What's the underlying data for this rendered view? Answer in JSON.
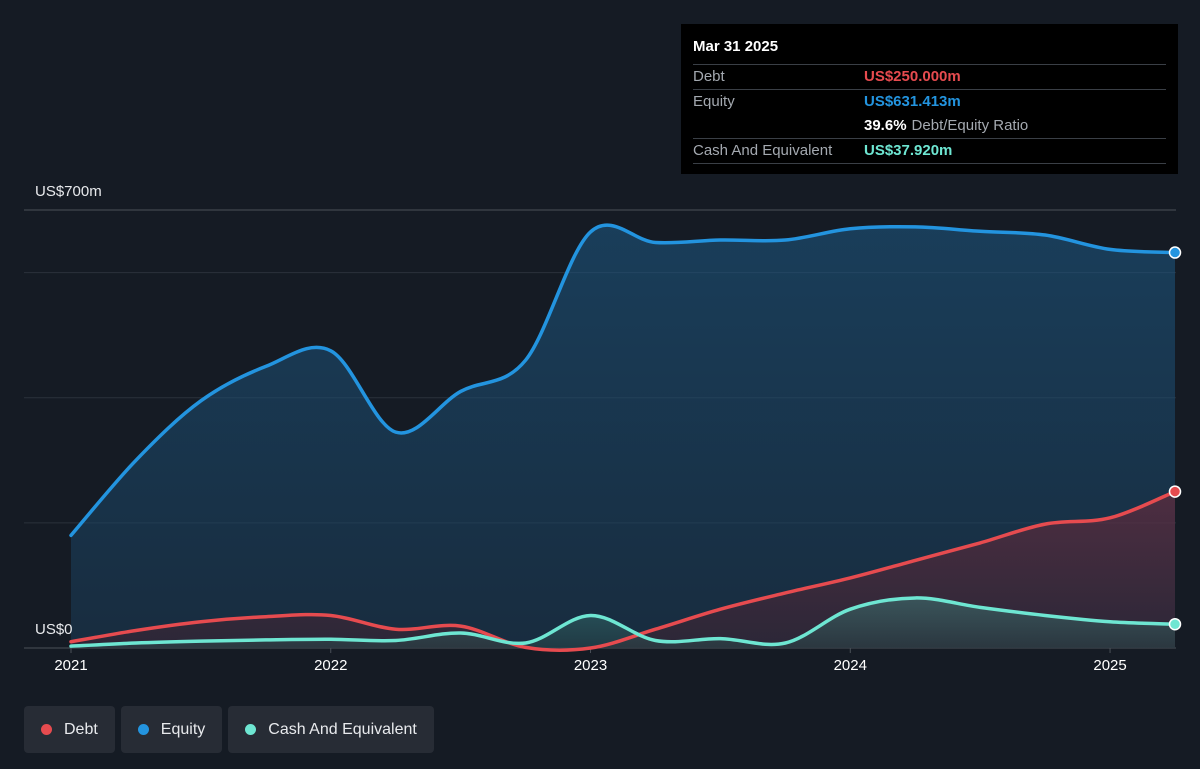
{
  "chart_data": {
    "type": "area",
    "y_axis": {
      "top_label": "US$700m",
      "bottom_label": "US$0",
      "ylim": [
        0,
        700
      ],
      "unit": "US$m"
    },
    "x_ticks": [
      {
        "label": "2021",
        "x": 2021.0
      },
      {
        "label": "2022",
        "x": 2022.0
      },
      {
        "label": "2023",
        "x": 2023.0
      },
      {
        "label": "2024",
        "x": 2024.0
      },
      {
        "label": "2025",
        "x": 2025.0
      }
    ],
    "series": [
      {
        "name": "Equity",
        "color": "#2394df",
        "points": [
          [
            2021.0,
            180
          ],
          [
            2021.25,
            300
          ],
          [
            2021.5,
            395
          ],
          [
            2021.75,
            450
          ],
          [
            2022.0,
            475
          ],
          [
            2022.25,
            345
          ],
          [
            2022.5,
            410
          ],
          [
            2022.75,
            460
          ],
          [
            2023.0,
            665
          ],
          [
            2023.25,
            648
          ],
          [
            2023.5,
            652
          ],
          [
            2023.75,
            652
          ],
          [
            2024.0,
            670
          ],
          [
            2024.25,
            673
          ],
          [
            2024.5,
            666
          ],
          [
            2024.75,
            660
          ],
          [
            2025.0,
            637
          ],
          [
            2025.25,
            632
          ]
        ]
      },
      {
        "name": "Debt",
        "color": "#e64b4f",
        "points": [
          [
            2021.0,
            10
          ],
          [
            2021.25,
            28
          ],
          [
            2021.5,
            42
          ],
          [
            2021.75,
            50
          ],
          [
            2022.0,
            52
          ],
          [
            2022.25,
            30
          ],
          [
            2022.5,
            35
          ],
          [
            2022.75,
            1
          ],
          [
            2023.0,
            0
          ],
          [
            2023.25,
            30
          ],
          [
            2023.5,
            62
          ],
          [
            2023.75,
            88
          ],
          [
            2024.0,
            112
          ],
          [
            2024.25,
            140
          ],
          [
            2024.5,
            168
          ],
          [
            2024.75,
            198
          ],
          [
            2025.0,
            208
          ],
          [
            2025.25,
            250
          ]
        ]
      },
      {
        "name": "Cash And Equivalent",
        "color": "#6ee6d2",
        "points": [
          [
            2021.0,
            3
          ],
          [
            2021.25,
            8
          ],
          [
            2021.5,
            11
          ],
          [
            2021.75,
            13
          ],
          [
            2022.0,
            14
          ],
          [
            2022.25,
            12
          ],
          [
            2022.5,
            24
          ],
          [
            2022.75,
            8
          ],
          [
            2023.0,
            52
          ],
          [
            2023.25,
            12
          ],
          [
            2023.5,
            15
          ],
          [
            2023.75,
            8
          ],
          [
            2024.0,
            62
          ],
          [
            2024.25,
            80
          ],
          [
            2024.5,
            65
          ],
          [
            2024.75,
            52
          ],
          [
            2025.0,
            42
          ],
          [
            2025.25,
            38
          ]
        ]
      }
    ]
  },
  "tooltip": {
    "date": "Mar 31 2025",
    "debt_label": "Debt",
    "debt_value": "US$250.000m",
    "equity_label": "Equity",
    "equity_value": "US$631.413m",
    "ratio_value": "39.6%",
    "ratio_label": "Debt/Equity Ratio",
    "cash_label": "Cash And Equivalent",
    "cash_value": "US$37.920m"
  },
  "legend": [
    {
      "label": "Debt",
      "color": "#e64b4f"
    },
    {
      "label": "Equity",
      "color": "#2394df"
    },
    {
      "label": "Cash And Equivalent",
      "color": "#6ee6d2"
    }
  ]
}
